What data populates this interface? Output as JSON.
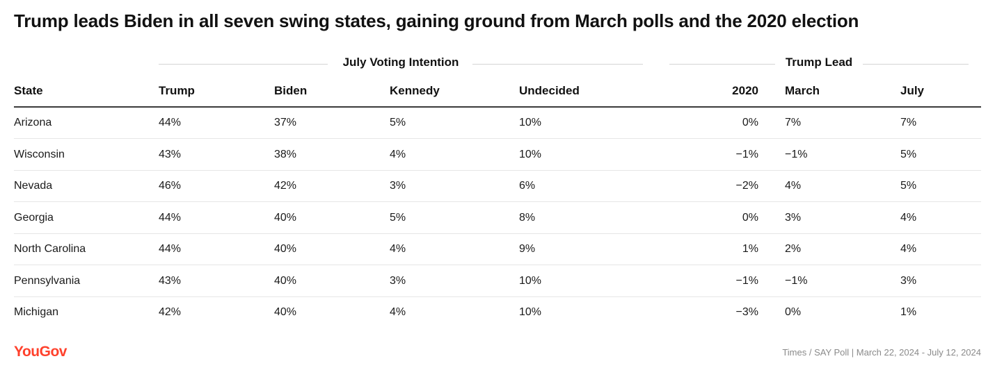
{
  "title": "Trump leads Biden in all seven swing states, gaining ground from March polls and the 2020 election",
  "group_headers": {
    "voting": "July Voting Intention",
    "lead": "Trump Lead"
  },
  "columns": {
    "state": "State",
    "trump": "Trump",
    "biden": "Biden",
    "kennedy": "Kennedy",
    "undecided": "Undecided",
    "lead_2020": "2020",
    "lead_march": "March",
    "lead_july": "July"
  },
  "chart_data": {
    "type": "table",
    "title": "Trump leads Biden in all seven swing states, gaining ground from March polls and the 2020 election",
    "rows": [
      {
        "state": "Arizona",
        "trump": "44%",
        "biden": "37%",
        "kennedy": "5%",
        "undecided": "10%",
        "lead_2020": "0%",
        "lead_march": "7%",
        "lead_july": "7%"
      },
      {
        "state": "Wisconsin",
        "trump": "43%",
        "biden": "38%",
        "kennedy": "4%",
        "undecided": "10%",
        "lead_2020": "−1%",
        "lead_march": "−1%",
        "lead_july": "5%"
      },
      {
        "state": "Nevada",
        "trump": "46%",
        "biden": "42%",
        "kennedy": "3%",
        "undecided": "6%",
        "lead_2020": "−2%",
        "lead_march": "4%",
        "lead_july": "5%"
      },
      {
        "state": "Georgia",
        "trump": "44%",
        "biden": "40%",
        "kennedy": "5%",
        "undecided": "8%",
        "lead_2020": "0%",
        "lead_march": "3%",
        "lead_july": "4%"
      },
      {
        "state": "North Carolina",
        "trump": "44%",
        "biden": "40%",
        "kennedy": "4%",
        "undecided": "9%",
        "lead_2020": "1%",
        "lead_march": "2%",
        "lead_july": "4%"
      },
      {
        "state": "Pennsylvania",
        "trump": "43%",
        "biden": "40%",
        "kennedy": "3%",
        "undecided": "10%",
        "lead_2020": "−1%",
        "lead_march": "−1%",
        "lead_july": "3%"
      },
      {
        "state": "Michigan",
        "trump": "42%",
        "biden": "40%",
        "kennedy": "4%",
        "undecided": "10%",
        "lead_2020": "−3%",
        "lead_march": "0%",
        "lead_july": "1%"
      }
    ]
  },
  "footer": {
    "logo": "YouGov",
    "source": "Times / SAY Poll | March 22, 2024 - July 12, 2024"
  },
  "colors": {
    "brand": "#ff412c",
    "text": "#1a1a1a",
    "rule": "#3a3a3a",
    "row_separator": "#e6e6e6"
  }
}
